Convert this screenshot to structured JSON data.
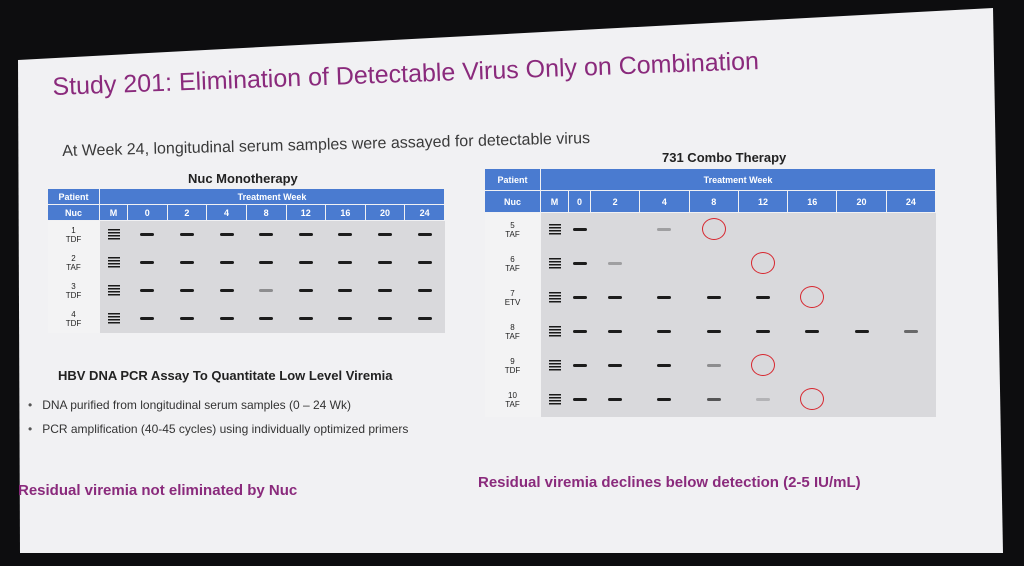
{
  "title": "Study 201: Elimination of Detectable Virus Only on Combination",
  "subtitle": "At Week 24, longitudinal serum samples were assayed for detectable virus",
  "left_panel": {
    "heading": "Nuc Monotherapy",
    "header": {
      "patient": "Patient",
      "nuc": "Nuc",
      "treatment_week": "Treatment Week",
      "weeks": [
        "M",
        "0",
        "2",
        "4",
        "8",
        "12",
        "16",
        "20",
        "24"
      ]
    },
    "rows": [
      {
        "patient": "1",
        "nuc": "TDF",
        "bands": [
          1,
          1,
          1,
          1,
          1,
          1,
          1,
          1
        ]
      },
      {
        "patient": "2",
        "nuc": "TAF",
        "bands": [
          1,
          1,
          1,
          1,
          1,
          1,
          1,
          1
        ]
      },
      {
        "patient": "3",
        "nuc": "TDF",
        "bands": [
          1,
          1,
          1,
          0.4,
          1,
          1,
          1,
          1
        ]
      },
      {
        "patient": "4",
        "nuc": "TDF",
        "bands": [
          1,
          1,
          1,
          1,
          1,
          1,
          1,
          1
        ]
      }
    ]
  },
  "right_panel": {
    "heading": "731 Combo Therapy",
    "header": {
      "patient": "Patient",
      "nuc": "Nuc",
      "treatment_week": "Treatment Week",
      "weeks": [
        "M",
        "0",
        "2",
        "4",
        "8",
        "12",
        "16",
        "20",
        "24"
      ]
    },
    "rows": [
      {
        "patient": "5",
        "nuc": "TAF",
        "bands": [
          1,
          0,
          0.3,
          0,
          0,
          0,
          0,
          0
        ],
        "circle_week": "8"
      },
      {
        "patient": "6",
        "nuc": "TAF",
        "bands": [
          1,
          0.3,
          0,
          0,
          0,
          0,
          0,
          0
        ],
        "circle_week": "12"
      },
      {
        "patient": "7",
        "nuc": "ETV",
        "bands": [
          1,
          1,
          1,
          1,
          1,
          0,
          0,
          0
        ],
        "circle_week": "16"
      },
      {
        "patient": "8",
        "nuc": "TAF",
        "bands": [
          1,
          1,
          1,
          1,
          1,
          1,
          1,
          0.6
        ]
      },
      {
        "patient": "9",
        "nuc": "TDF",
        "bands": [
          1,
          1,
          1,
          0.4,
          0,
          0,
          0,
          0
        ],
        "circle_week": "12"
      },
      {
        "patient": "10",
        "nuc": "TAF",
        "bands": [
          1,
          1,
          1,
          0.7,
          0.2,
          0,
          0,
          0
        ],
        "circle_week": "16"
      }
    ]
  },
  "assay": {
    "title": "HBV DNA PCR Assay To Quantitate Low Level Viremia",
    "bullets": [
      "DNA purified from longitudinal serum samples (0 – 24 Wk)",
      "PCR amplification (40-45 cycles) using individually optimized primers"
    ]
  },
  "conclusions": {
    "left": "Residual viremia not eliminated by Nuc",
    "right": "Residual viremia declines below detection (2-5 IU/mL)"
  },
  "colors": {
    "title": "#8a2a7c",
    "header": "#4a7bd0",
    "circle": "#d7262e",
    "gel": "#d9d9dc"
  }
}
